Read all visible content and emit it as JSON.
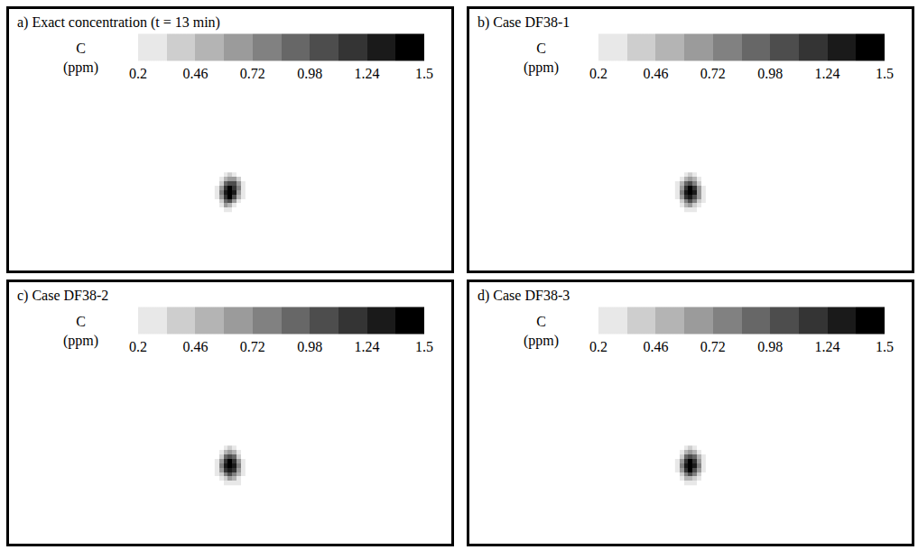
{
  "chart_data": [
    {
      "type": "heatmap",
      "title": "a) Exact concentration (t = 13 min)",
      "colorbar_title": "C (ppm)",
      "colorbar_range": [
        0.2,
        1.5
      ],
      "colorbar_ticks": [
        0.2,
        0.46,
        0.72,
        0.98,
        1.24,
        1.5
      ],
      "xlim": [
        0,
        100
      ],
      "ylim": [
        0,
        60
      ],
      "tick_labels": false,
      "x": [
        47,
        48,
        49,
        50,
        51,
        52,
        53
      ],
      "y": [
        14,
        15,
        16,
        17,
        18,
        19,
        20,
        21,
        22
      ],
      "cells": [
        [
          null,
          null,
          0.3,
          0.25,
          null,
          null,
          null
        ],
        [
          null,
          0.3,
          0.6,
          0.5,
          0.25,
          null,
          null
        ],
        [
          null,
          0.4,
          0.9,
          1.0,
          0.6,
          0.3,
          null
        ],
        [
          0.25,
          0.7,
          1.2,
          1.4,
          1.0,
          0.5,
          0.25
        ],
        [
          0.3,
          0.8,
          1.35,
          1.5,
          1.3,
          0.7,
          0.3
        ],
        [
          0.25,
          0.6,
          1.2,
          1.4,
          1.2,
          0.8,
          0.3
        ],
        [
          null,
          0.4,
          0.9,
          1.1,
          1.0,
          0.6,
          0.25
        ],
        [
          null,
          0.25,
          0.5,
          0.7,
          0.6,
          0.35,
          null
        ],
        [
          null,
          null,
          0.25,
          0.35,
          0.3,
          null,
          null
        ]
      ]
    },
    {
      "type": "heatmap",
      "title": "b) Case DF38-1",
      "colorbar_title": "C (ppm)",
      "colorbar_range": [
        0.2,
        1.5
      ],
      "colorbar_ticks": [
        0.2,
        0.46,
        0.72,
        0.98,
        1.24,
        1.5
      ],
      "xlim": [
        0,
        100
      ],
      "ylim": [
        0,
        60
      ],
      "tick_labels": false,
      "x": [
        47,
        48,
        49,
        50,
        51,
        52,
        53
      ],
      "y": [
        14,
        15,
        16,
        17,
        18,
        19,
        20,
        21,
        22
      ],
      "cells": [
        [
          null,
          null,
          0.25,
          0.3,
          0.25,
          null,
          null
        ],
        [
          null,
          0.25,
          0.5,
          0.6,
          0.4,
          0.25,
          null
        ],
        [
          null,
          0.4,
          0.85,
          1.0,
          0.8,
          0.45,
          0.25
        ],
        [
          0.25,
          0.65,
          1.15,
          1.35,
          1.1,
          0.6,
          0.3
        ],
        [
          0.3,
          0.8,
          1.3,
          1.5,
          1.25,
          0.7,
          0.3
        ],
        [
          0.25,
          0.7,
          1.2,
          1.4,
          1.15,
          0.6,
          0.25
        ],
        [
          0.25,
          0.5,
          0.95,
          1.1,
          0.85,
          0.4,
          null
        ],
        [
          null,
          0.3,
          0.55,
          0.65,
          0.5,
          0.25,
          null
        ],
        [
          null,
          null,
          0.3,
          0.35,
          0.25,
          null,
          null
        ]
      ]
    },
    {
      "type": "heatmap",
      "title": "c) Case DF38-2",
      "colorbar_title": "C (ppm)",
      "colorbar_range": [
        0.2,
        1.5
      ],
      "colorbar_ticks": [
        0.2,
        0.46,
        0.72,
        0.98,
        1.24,
        1.5
      ],
      "xlim": [
        0,
        100
      ],
      "ylim": [
        0,
        60
      ],
      "tick_labels": false,
      "x": [
        47,
        48,
        49,
        50,
        51,
        52,
        53
      ],
      "y": [
        14,
        15,
        16,
        17,
        18,
        19,
        20,
        21,
        22
      ],
      "cells": [
        [
          null,
          null,
          0.25,
          0.3,
          0.3,
          0.25,
          null
        ],
        [
          null,
          0.25,
          0.45,
          0.6,
          0.5,
          0.3,
          null
        ],
        [
          0.25,
          0.4,
          0.8,
          1.0,
          0.85,
          0.5,
          0.25
        ],
        [
          0.3,
          0.7,
          1.15,
          1.35,
          1.15,
          0.65,
          0.3
        ],
        [
          0.3,
          0.8,
          1.3,
          1.5,
          1.3,
          0.75,
          0.3
        ],
        [
          0.25,
          0.65,
          1.2,
          1.4,
          1.2,
          0.65,
          0.25
        ],
        [
          null,
          0.45,
          0.9,
          1.05,
          0.9,
          0.45,
          null
        ],
        [
          null,
          0.3,
          0.55,
          0.65,
          0.5,
          0.25,
          null
        ],
        [
          null,
          null,
          0.3,
          0.35,
          0.25,
          null,
          null
        ]
      ]
    },
    {
      "type": "heatmap",
      "title": "d) Case DF38-3",
      "colorbar_title": "C (ppm)",
      "colorbar_range": [
        0.2,
        1.5
      ],
      "colorbar_ticks": [
        0.2,
        0.46,
        0.72,
        0.98,
        1.24,
        1.5
      ],
      "xlim": [
        0,
        100
      ],
      "ylim": [
        0,
        60
      ],
      "tick_labels": false,
      "x": [
        47,
        48,
        49,
        50,
        51,
        52,
        53
      ],
      "y": [
        14,
        15,
        16,
        17,
        18,
        19,
        20,
        21,
        22
      ],
      "cells": [
        [
          null,
          null,
          0.25,
          0.3,
          0.25,
          null,
          null
        ],
        [
          null,
          0.3,
          0.5,
          0.55,
          0.45,
          0.25,
          null
        ],
        [
          null,
          0.4,
          0.85,
          1.0,
          0.8,
          0.4,
          null
        ],
        [
          0.25,
          0.7,
          1.2,
          1.4,
          1.1,
          0.6,
          0.25
        ],
        [
          0.3,
          0.8,
          1.3,
          1.5,
          1.3,
          0.75,
          0.3
        ],
        [
          0.25,
          0.7,
          1.2,
          1.4,
          1.2,
          0.7,
          0.3
        ],
        [
          null,
          0.45,
          0.9,
          1.1,
          0.95,
          0.5,
          0.25
        ],
        [
          null,
          0.25,
          0.5,
          0.65,
          0.55,
          0.3,
          null
        ],
        [
          null,
          null,
          0.25,
          0.35,
          0.3,
          null,
          null
        ]
      ]
    }
  ]
}
